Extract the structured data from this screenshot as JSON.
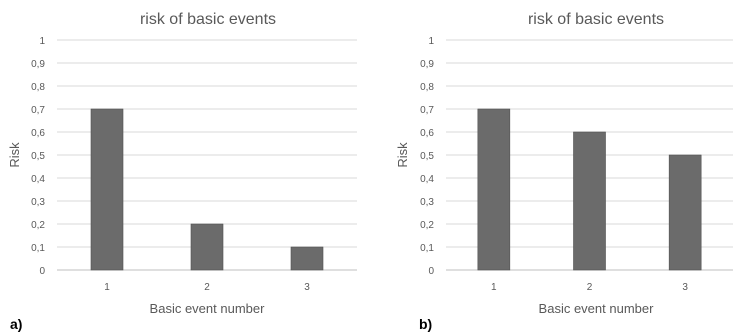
{
  "chart_data": [
    {
      "type": "bar",
      "panel_label": "a)",
      "title": "risk of basic events",
      "xlabel": "Basic event number",
      "ylabel": "Risk",
      "categories": [
        "1",
        "2",
        "3"
      ],
      "values": [
        0.7,
        0.2,
        0.1
      ],
      "ylim": [
        0,
        1
      ],
      "yticks": [
        "0",
        "0,1",
        "0,2",
        "0,3",
        "0,4",
        "0,5",
        "0,6",
        "0,7",
        "0,8",
        "0,9",
        "1"
      ],
      "grid": true,
      "bar_color": "#6b6b6b"
    },
    {
      "type": "bar",
      "panel_label": "b)",
      "title": "risk of basic events",
      "xlabel": "Basic event number",
      "ylabel": "Risk",
      "categories": [
        "1",
        "2",
        "3"
      ],
      "values": [
        0.7,
        0.6,
        0.5
      ],
      "ylim": [
        0,
        1
      ],
      "yticks": [
        "0",
        "0,1",
        "0,2",
        "0,3",
        "0,4",
        "0,5",
        "0,6",
        "0,7",
        "0,8",
        "0,9",
        "1"
      ],
      "grid": true,
      "bar_color": "#6b6b6b"
    }
  ]
}
